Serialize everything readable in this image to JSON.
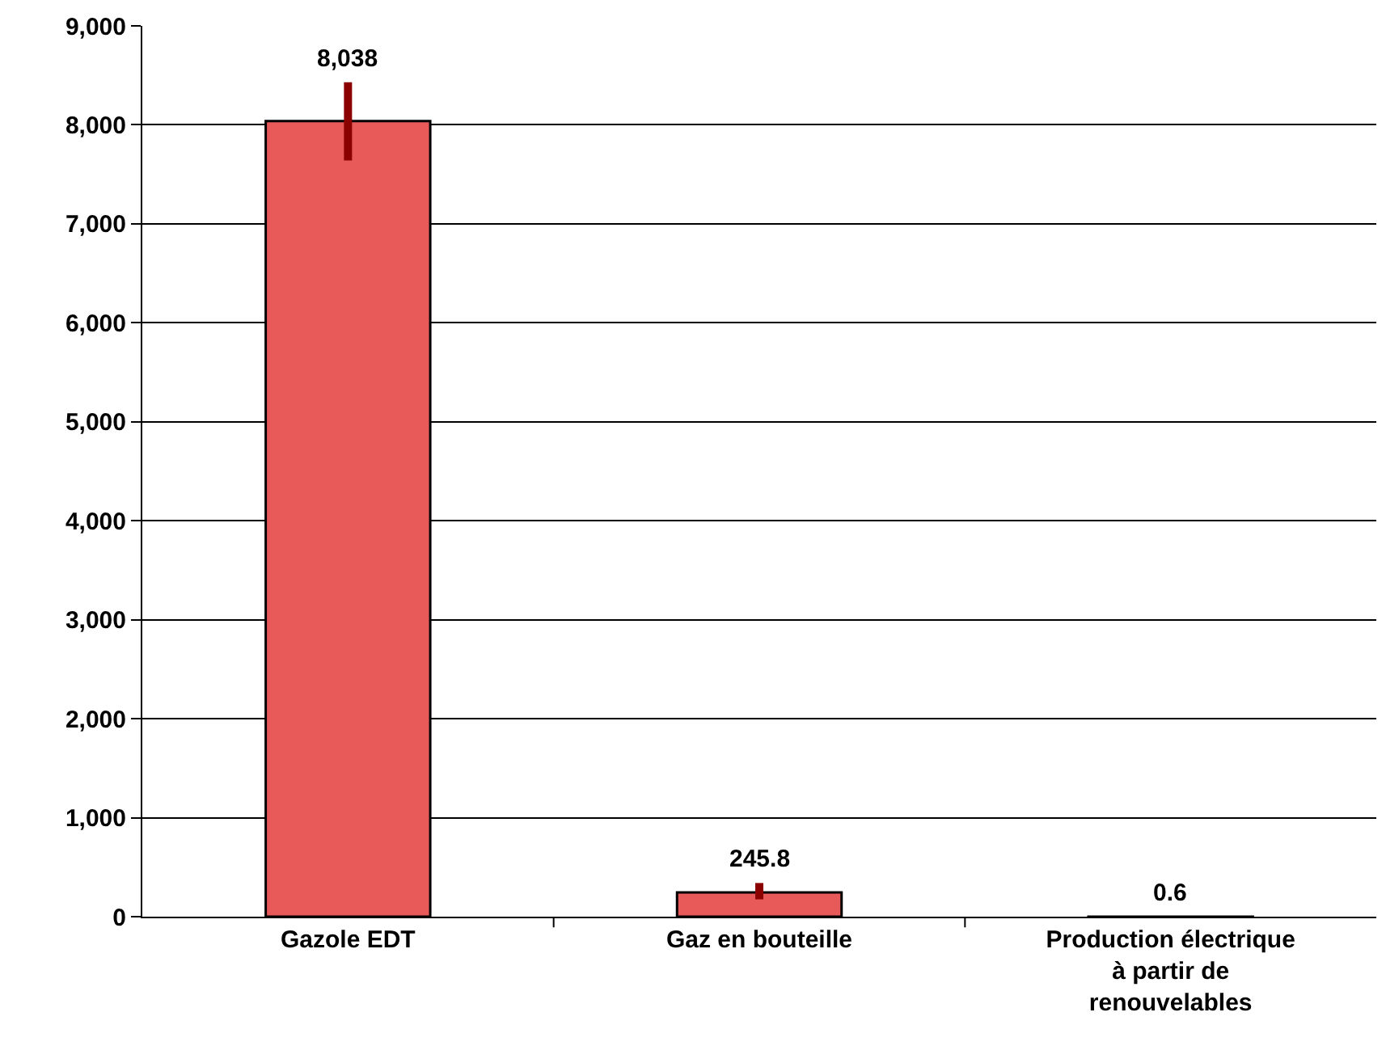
{
  "chart_data": {
    "type": "bar",
    "categories": [
      "Gazole EDT",
      "Gaz en bouteille",
      "Production électrique\nà partir de\nrenouvelables"
    ],
    "values": [
      8038,
      245.8,
      0.6
    ],
    "color": "#e85a5a",
    "errors": [
      [
        7640,
        8430
      ],
      [
        175,
        340
      ],
      null
    ],
    "value_labels": [
      "8,038",
      "245.8",
      "0.6"
    ],
    "ylim": [
      0,
      9000
    ],
    "yticks": [
      {
        "value": 0,
        "label": "0"
      },
      {
        "value": 1000,
        "label": "1,000"
      },
      {
        "value": 2000,
        "label": "2,000"
      },
      {
        "value": 3000,
        "label": "3,000"
      },
      {
        "value": 4000,
        "label": "4,000"
      },
      {
        "value": 5000,
        "label": "5,000"
      },
      {
        "value": 6000,
        "label": "6,000"
      },
      {
        "value": 7000,
        "label": "7,000"
      },
      {
        "value": 8000,
        "label": "8,000"
      },
      {
        "value": 9000,
        "label": "9,000"
      }
    ],
    "grid": "y",
    "legend": false
  }
}
